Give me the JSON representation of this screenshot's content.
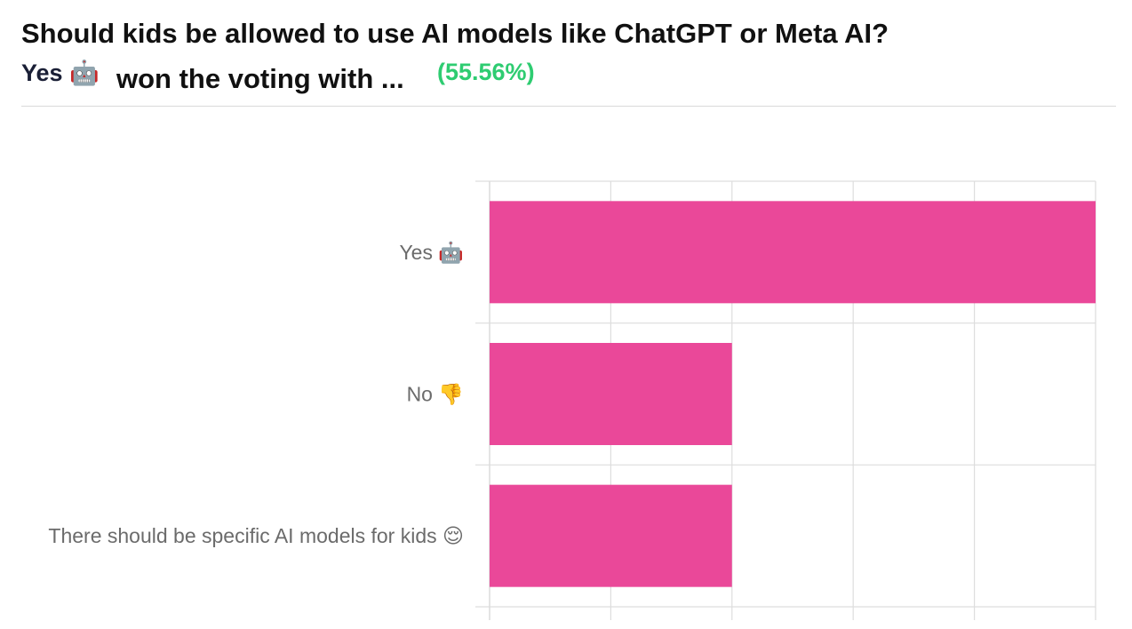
{
  "poll": {
    "question": "Should kids be allowed to use AI models like ChatGPT or Meta AI?",
    "winner_option": "Yes 🤖",
    "winner_text": "won the voting with ...",
    "winner_percent": "(55.56%)"
  },
  "colors": {
    "bar": "#ea4899",
    "grid": "#dddddd",
    "winner_percent": "#2ecc71"
  },
  "chart_data": {
    "type": "bar",
    "orientation": "horizontal",
    "categories": [
      "Yes 🤖",
      "No 👎",
      "There should be specific AI models for kids 😌"
    ],
    "values": [
      55.56,
      22.22,
      22.22
    ],
    "xlim": [
      0,
      55.56
    ],
    "grid": true,
    "legend": "none"
  }
}
